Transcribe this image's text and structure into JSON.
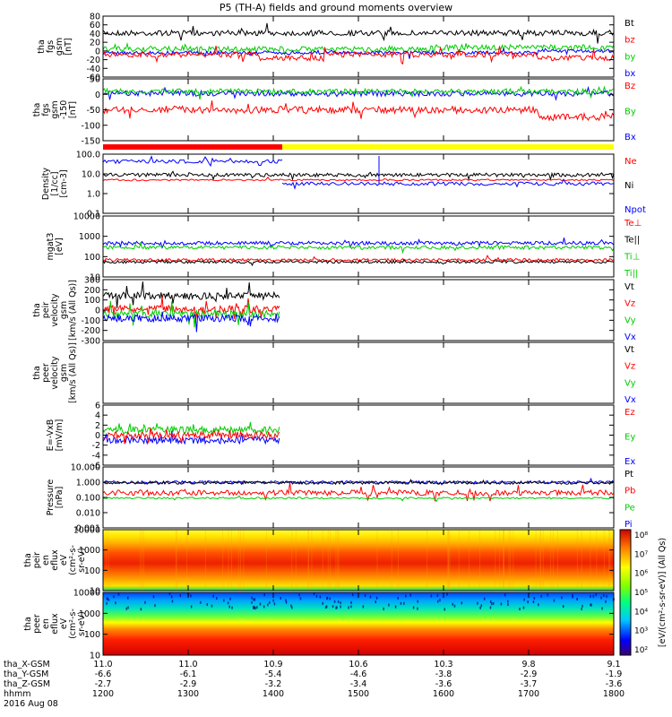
{
  "title": "P5 (TH-A) fields and ground moments overview",
  "date_label": "2016 Aug 08",
  "bar_colors": [
    "#ff0000",
    "#ffff00"
  ],
  "spectrogram_colorbar": {
    "ticks": [
      "10⁸",
      "10⁷",
      "10⁶",
      "10⁵",
      "10⁴",
      "10³",
      "10²"
    ],
    "label": "[eV/(cm²-s-sr-eV)] (All Qs)"
  },
  "chart_data": [
    {
      "type": "line",
      "ylabel": [
        "tha",
        "fgs",
        "gsm",
        "[nT]"
      ],
      "yticks": [
        "80",
        "60",
        "40",
        "20",
        "0",
        "-20",
        "-40",
        "-60"
      ],
      "ylim": [
        -60,
        80
      ],
      "legend": [
        {
          "label": "Bt",
          "color": "#000000"
        },
        {
          "label": "bz",
          "color": "#ff0000"
        },
        {
          "label": "by",
          "color": "#00cc00"
        },
        {
          "label": "bx",
          "color": "#0000ff"
        }
      ]
    },
    {
      "type": "line",
      "ylabel": [
        "tha",
        "fgs",
        "gsm",
        "-150",
        "[nT]"
      ],
      "yticks": [
        "50",
        "0",
        "-50",
        "-100",
        "-150"
      ],
      "ylim": [
        -170,
        50
      ],
      "legend": [
        {
          "label": "Bz",
          "color": "#ff0000"
        },
        {
          "label": "By",
          "color": "#00cc00"
        },
        {
          "label": "Bx",
          "color": "#0000ff"
        }
      ]
    },
    {
      "type": "line",
      "ylabel": [
        "Density",
        "[1/cc]",
        "[cm-3]"
      ],
      "yticks": [
        "100.0",
        "10.0",
        "1.0",
        "0.1"
      ],
      "log": true,
      "legend": [
        {
          "label": "Ne",
          "color": "#ff0000"
        },
        {
          "label": "Ni",
          "color": "#000000"
        },
        {
          "label": "Npot",
          "color": "#0000ff"
        }
      ]
    },
    {
      "type": "line",
      "ylabel": [
        "mgat3",
        "[eV]"
      ],
      "yticks": [
        "10000",
        "1000",
        "100",
        "10"
      ],
      "log": true,
      "legend": [
        {
          "label": "Te⊥",
          "color": "#ff0000"
        },
        {
          "label": "Te||",
          "color": "#000000"
        },
        {
          "label": "Ti⊥",
          "color": "#00cc00"
        },
        {
          "label": "Ti||",
          "color": "#00cc00"
        }
      ]
    },
    {
      "type": "line",
      "ylabel": [
        "tha",
        "peir",
        "velocity",
        "gsm",
        "[km/s (All Qs)]"
      ],
      "yticks": [
        "300",
        "200",
        "100",
        "0",
        "-100",
        "-200",
        "-300"
      ],
      "ylim": [
        -300,
        300
      ],
      "legend": [
        {
          "label": "Vt",
          "color": "#000000"
        },
        {
          "label": "Vz",
          "color": "#ff0000"
        },
        {
          "label": "Vy",
          "color": "#00cc00"
        },
        {
          "label": "Vx",
          "color": "#0000ff"
        }
      ]
    },
    {
      "type": "line",
      "ylabel": [
        "tha",
        "peer",
        "velocity",
        "gsm",
        "[km/s (All Qs)]"
      ],
      "yticks": [],
      "legend": [
        {
          "label": "Vt",
          "color": "#000000"
        },
        {
          "label": "Vz",
          "color": "#ff0000"
        },
        {
          "label": "Vy",
          "color": "#00cc00"
        },
        {
          "label": "Vx",
          "color": "#0000ff"
        }
      ]
    },
    {
      "type": "line",
      "ylabel": [
        "E=-VxB",
        "[mV/m]"
      ],
      "yticks": [
        "6",
        "4",
        "2",
        "0",
        "-2",
        "-4",
        "-6"
      ],
      "ylim": [
        -6,
        6
      ],
      "legend": [
        {
          "label": "Ez",
          "color": "#ff0000"
        },
        {
          "label": "Ey",
          "color": "#00cc00"
        },
        {
          "label": "Ex",
          "color": "#0000ff"
        }
      ]
    },
    {
      "type": "line",
      "ylabel": [
        "Pressure",
        "[nPa]"
      ],
      "yticks": [
        "10.000",
        "1.000",
        "0.100",
        "0.010",
        "0.001"
      ],
      "log": true,
      "legend": [
        {
          "label": "Pt",
          "color": "#000000"
        },
        {
          "label": "Pb",
          "color": "#ff0000"
        },
        {
          "label": "Pe",
          "color": "#00cc00"
        },
        {
          "label": "Pi",
          "color": "#0000ff"
        }
      ]
    },
    {
      "type": "heatmap",
      "ylabel": [
        "tha",
        "peir",
        "en",
        "eflux",
        "eV",
        "(cm²-s-",
        "sr-eV)"
      ],
      "yticks": [
        "10000",
        "1000",
        "100",
        "10"
      ],
      "log": true,
      "legend": []
    },
    {
      "type": "heatmap",
      "ylabel": [
        "tha",
        "peer",
        "en",
        "eflux",
        "eV",
        "(cm²-s-",
        "sr-eV)"
      ],
      "yticks": [
        "10000",
        "1000",
        "100",
        "10"
      ],
      "log": true,
      "legend": []
    }
  ],
  "x_axis": {
    "rows": [
      {
        "label": "tha_X-GSM",
        "values": [
          "11.0",
          "11.0",
          "10.9",
          "10.6",
          "10.3",
          "9.8",
          "9.1"
        ]
      },
      {
        "label": "tha_Y-GSM",
        "values": [
          "-6.6",
          "-6.1",
          "-5.4",
          "-4.6",
          "-3.8",
          "-2.9",
          "-1.9"
        ]
      },
      {
        "label": "tha_Z-GSM",
        "values": [
          "-2.7",
          "-2.9",
          "-3.2",
          "-3.4",
          "-3.6",
          "-3.7",
          "-3.6"
        ]
      },
      {
        "label": "hhmm",
        "values": [
          "1200",
          "1300",
          "1400",
          "1500",
          "1600",
          "1700",
          "1800"
        ]
      }
    ]
  }
}
